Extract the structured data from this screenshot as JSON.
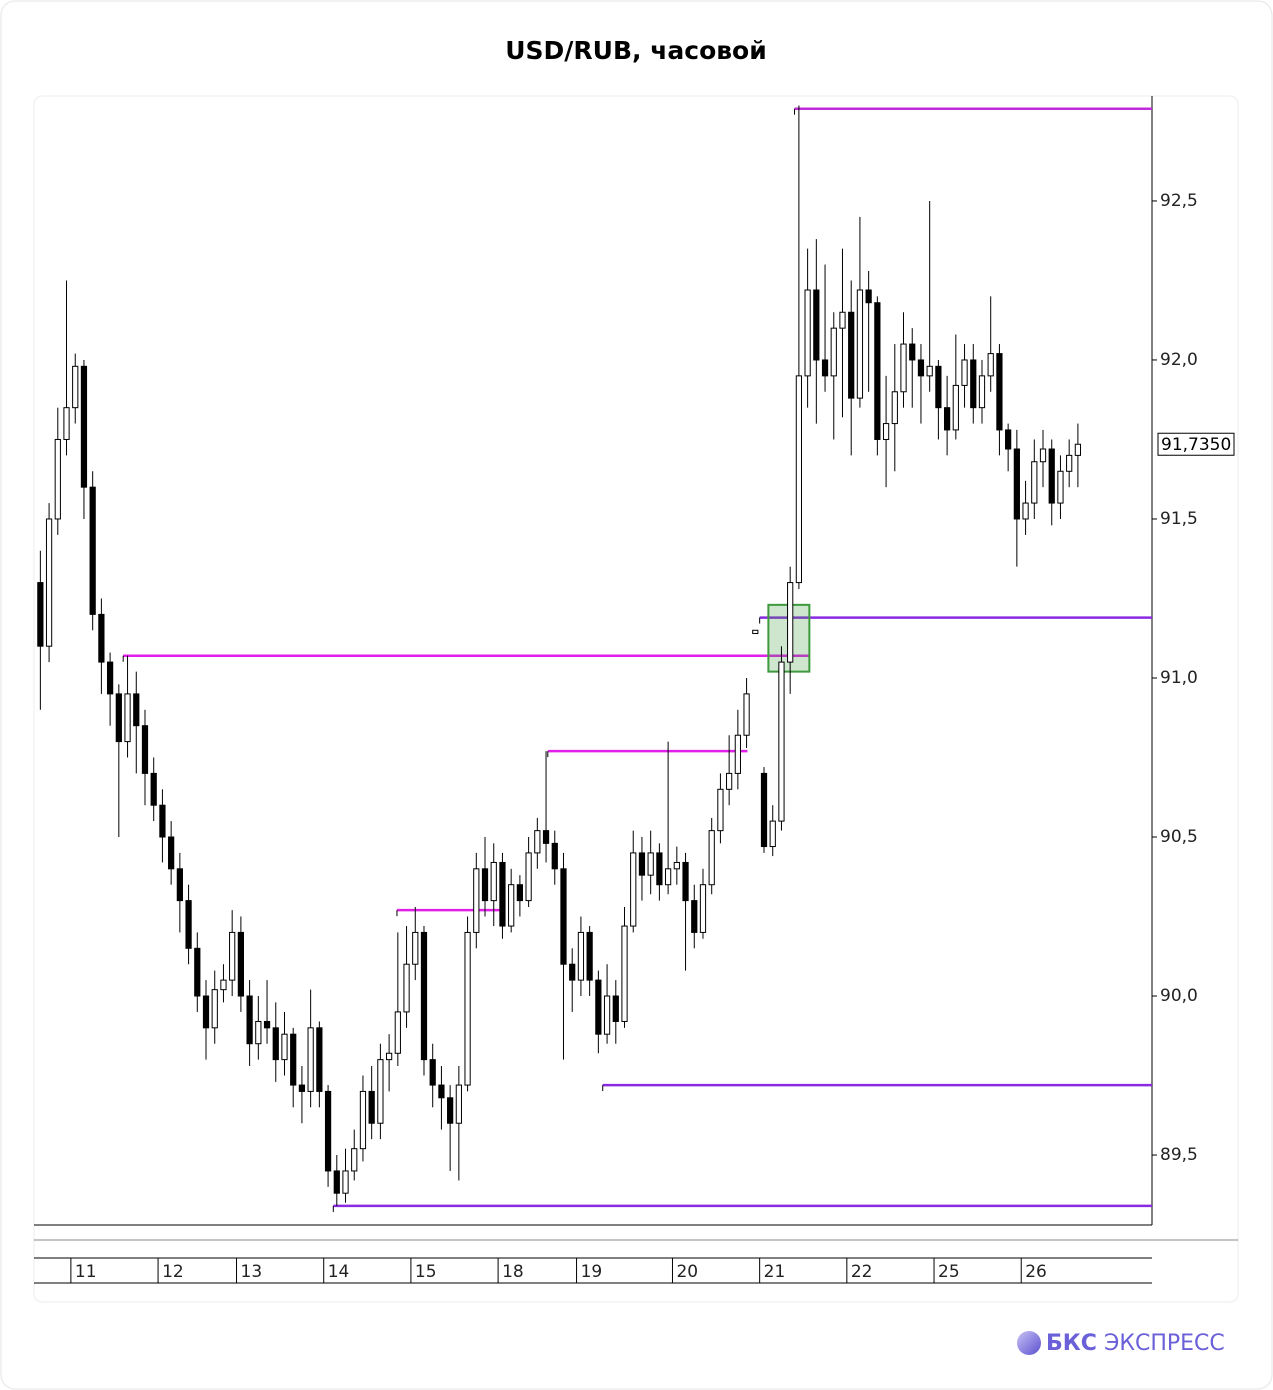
{
  "chart_data": {
    "type": "candlestick",
    "title": "USD/RUB, часовой",
    "open": [
      91.3,
      91.1,
      91.5,
      91.75,
      91.85,
      91.98,
      91.6,
      91.2,
      91.05,
      90.95,
      90.8,
      90.95,
      90.85,
      90.7,
      90.6,
      90.5,
      90.4,
      90.3,
      90.15,
      90.0,
      89.9,
      90.02,
      90.05,
      90.2,
      90.0,
      89.85,
      89.92,
      89.9,
      89.8,
      89.88,
      89.72,
      89.7,
      89.9,
      89.7,
      89.45,
      89.38,
      89.45,
      89.52,
      89.7,
      89.6,
      89.8,
      89.82,
      89.95,
      90.1,
      90.2,
      89.8,
      89.72,
      89.68,
      89.6,
      89.72,
      90.2,
      90.4,
      90.3,
      90.42,
      90.22,
      90.35,
      90.3,
      90.45,
      90.52,
      90.48,
      90.4,
      90.1,
      90.05,
      90.2,
      90.05,
      89.88,
      90.0,
      89.92,
      90.22,
      90.45,
      90.38,
      90.45,
      90.35,
      90.4,
      90.42,
      90.3,
      90.2,
      90.35,
      90.52,
      90.65,
      90.7,
      90.82,
      91.14,
      90.7,
      90.47,
      90.55,
      91.05,
      91.3,
      91.95,
      92.22,
      92.0,
      91.95,
      92.1,
      92.15,
      91.88,
      92.22,
      92.18,
      91.75,
      91.8,
      91.9,
      92.05,
      92.0,
      91.95,
      91.98,
      91.85,
      91.78,
      91.92,
      92.0,
      91.85,
      91.95,
      92.02,
      91.78,
      91.72,
      91.5,
      91.55,
      91.68,
      91.72,
      91.55,
      91.65,
      91.7
    ],
    "high": [
      91.4,
      91.55,
      91.85,
      92.25,
      92.02,
      92.0,
      91.65,
      91.25,
      91.08,
      90.98,
      91.07,
      91.02,
      90.9,
      90.75,
      90.65,
      90.55,
      90.45,
      90.35,
      90.2,
      90.05,
      90.08,
      90.1,
      90.27,
      90.25,
      90.05,
      90.0,
      90.05,
      89.98,
      89.95,
      89.9,
      89.78,
      90.02,
      89.92,
      89.72,
      89.5,
      89.52,
      89.58,
      89.75,
      89.78,
      89.85,
      89.88,
      90.2,
      90.22,
      90.28,
      90.22,
      89.85,
      89.78,
      89.72,
      89.78,
      90.25,
      90.45,
      90.5,
      90.48,
      90.45,
      90.4,
      90.38,
      90.5,
      90.56,
      90.77,
      90.52,
      90.45,
      90.15,
      90.25,
      90.22,
      90.08,
      90.1,
      90.05,
      90.28,
      90.52,
      90.5,
      90.52,
      90.48,
      90.8,
      90.47,
      90.45,
      90.35,
      90.4,
      90.56,
      90.7,
      90.82,
      90.9,
      91.0,
      91.15,
      90.72,
      90.6,
      91.1,
      91.35,
      92.8,
      92.35,
      92.38,
      92.3,
      92.15,
      92.35,
      92.25,
      92.45,
      92.28,
      92.2,
      91.95,
      92.05,
      92.15,
      92.1,
      92.05,
      92.5,
      92.0,
      91.95,
      92.08,
      92.05,
      92.05,
      92.0,
      92.2,
      92.05,
      91.8,
      91.78,
      91.62,
      91.75,
      91.78,
      91.75,
      91.7,
      91.75,
      91.8
    ],
    "low": [
      90.9,
      91.05,
      91.45,
      91.7,
      91.8,
      91.5,
      91.15,
      90.95,
      90.85,
      90.5,
      90.75,
      90.7,
      90.6,
      90.55,
      90.42,
      90.35,
      90.2,
      90.1,
      89.95,
      89.8,
      89.85,
      89.98,
      90.0,
      89.95,
      89.78,
      89.8,
      89.85,
      89.73,
      89.75,
      89.65,
      89.6,
      89.65,
      89.65,
      89.4,
      89.34,
      89.35,
      89.42,
      89.48,
      89.55,
      89.55,
      89.7,
      89.78,
      89.9,
      90.05,
      89.75,
      89.65,
      89.58,
      89.45,
      89.42,
      89.7,
      90.15,
      90.25,
      90.22,
      90.18,
      90.2,
      90.25,
      90.28,
      90.4,
      90.42,
      90.35,
      89.8,
      89.95,
      90.0,
      90.0,
      89.82,
      89.85,
      89.85,
      89.9,
      90.2,
      90.3,
      90.32,
      90.3,
      90.32,
      90.35,
      90.08,
      90.15,
      90.18,
      90.32,
      90.48,
      90.6,
      90.65,
      90.78,
      91.14,
      90.45,
      90.44,
      90.52,
      90.95,
      91.28,
      91.85,
      91.8,
      91.9,
      91.75,
      91.82,
      91.7,
      91.85,
      91.9,
      91.7,
      91.6,
      91.65,
      91.85,
      91.85,
      91.8,
      91.9,
      91.75,
      91.7,
      91.75,
      91.85,
      91.8,
      91.8,
      91.9,
      91.7,
      91.65,
      91.35,
      91.45,
      91.5,
      91.6,
      91.48,
      91.5,
      91.6,
      91.6
    ],
    "close": [
      91.1,
      91.5,
      91.75,
      91.85,
      91.98,
      91.6,
      91.2,
      91.05,
      90.95,
      90.8,
      90.95,
      90.85,
      90.7,
      90.6,
      90.5,
      90.4,
      90.3,
      90.15,
      90.0,
      89.9,
      90.02,
      90.05,
      90.2,
      90.0,
      89.85,
      89.92,
      89.9,
      89.8,
      89.88,
      89.72,
      89.7,
      89.9,
      89.7,
      89.45,
      89.38,
      89.45,
      89.52,
      89.7,
      89.6,
      89.8,
      89.82,
      89.95,
      90.1,
      90.2,
      89.8,
      89.72,
      89.68,
      89.6,
      89.72,
      90.2,
      90.4,
      90.3,
      90.42,
      90.22,
      90.35,
      90.3,
      90.45,
      90.52,
      90.48,
      90.4,
      90.1,
      90.05,
      90.2,
      90.05,
      89.88,
      90.0,
      89.92,
      90.22,
      90.45,
      90.38,
      90.45,
      90.35,
      90.4,
      90.42,
      90.3,
      90.2,
      90.35,
      90.52,
      90.65,
      90.7,
      90.82,
      90.95,
      91.15,
      90.47,
      90.55,
      91.05,
      91.3,
      91.95,
      92.22,
      92.0,
      91.95,
      92.1,
      92.15,
      91.88,
      92.22,
      92.18,
      91.75,
      91.8,
      91.9,
      92.05,
      92.0,
      91.95,
      91.98,
      91.85,
      91.78,
      91.92,
      92.0,
      91.85,
      91.95,
      92.02,
      91.78,
      91.72,
      91.5,
      91.55,
      91.68,
      91.72,
      91.55,
      91.65,
      91.7,
      91.735
    ],
    "up_color": "#ffffff",
    "down_color": "#000000",
    "xlim": [
      0,
      128
    ],
    "xticks": [
      {
        "value": 4,
        "label": "11"
      },
      {
        "value": 14,
        "label": "12"
      },
      {
        "value": 23,
        "label": "13"
      },
      {
        "value": 33,
        "label": "14"
      },
      {
        "value": 43,
        "label": "15"
      },
      {
        "value": 53,
        "label": "18"
      },
      {
        "value": 62,
        "label": "19"
      },
      {
        "value": 73,
        "label": "20"
      },
      {
        "value": 83,
        "label": "21"
      },
      {
        "value": 93,
        "label": "22"
      },
      {
        "value": 103,
        "label": "25"
      },
      {
        "value": 113,
        "label": "26"
      }
    ],
    "ylim": [
      89.28,
      92.83
    ],
    "yticks": [
      {
        "value": 89.5,
        "label": "89,5"
      },
      {
        "value": 90.0,
        "label": "90,0"
      },
      {
        "value": 90.5,
        "label": "90,5"
      },
      {
        "value": 91.0,
        "label": "91,0"
      },
      {
        "value": 91.5,
        "label": "91,5"
      },
      {
        "value": 92.0,
        "label": "92,0"
      },
      {
        "value": 92.5,
        "label": "92,5"
      }
    ],
    "last_price": {
      "value": 91.735,
      "label": "91,7350"
    },
    "levels": [
      {
        "value": 92.79,
        "x": [
          87,
          128
        ],
        "color": "#c02ad8"
      },
      {
        "value": 91.19,
        "x": [
          83,
          128
        ],
        "color": "#8a2be2"
      },
      {
        "value": 91.07,
        "x": [
          10,
          88.7
        ],
        "color": "#e020e8"
      },
      {
        "value": 90.77,
        "x": [
          58.7,
          81.6
        ],
        "color": "#e020e8"
      },
      {
        "value": 90.27,
        "x": [
          41.4,
          53.3
        ],
        "color": "#e020e8"
      },
      {
        "value": 89.72,
        "x": [
          65,
          128
        ],
        "color": "#8a2be2"
      },
      {
        "value": 89.34,
        "x": [
          34.1,
          128
        ],
        "color": "#8a2be2"
      }
    ],
    "highlight": {
      "x": [
        84,
        88.7
      ],
      "y": [
        91.02,
        91.23
      ],
      "color": "#3c9a3c"
    }
  },
  "brand": "БКС",
  "brand_sub": "ЭКСПРЕСС"
}
